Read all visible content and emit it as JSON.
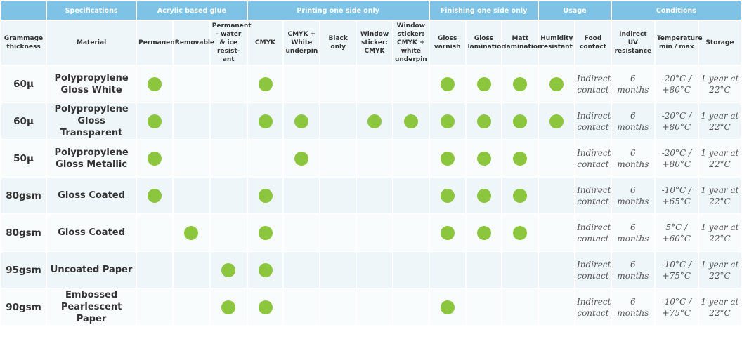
{
  "colors": {
    "header": "#7ec3e6",
    "dot": "#8cc63f",
    "subheader_bg": "#eef6fa"
  },
  "groups": [
    {
      "label": "",
      "span": 1
    },
    {
      "label": "Specifications",
      "span": 1
    },
    {
      "label": "Acrylic based glue",
      "span": 3
    },
    {
      "label": "Printing one side only",
      "span": 5
    },
    {
      "label": "Finishing one side only",
      "span": 3
    },
    {
      "label": "Usage",
      "span": 2
    },
    {
      "label": "Conditions",
      "span": 3
    }
  ],
  "columns": [
    "Grammage thickness",
    "Material",
    "Permanent",
    "Removable",
    "Permanent - water & ice resist-ant",
    "CMYK",
    "CMYK + White underpin",
    "Black only",
    "Window sticker: CMYK",
    "Window sticker: CMYK + white underpin",
    "Gloss varnish",
    "Gloss lamination",
    "Matt lamination",
    "Humidity resistant",
    "Food contact",
    "Indirect UV resistance",
    "Temperature min / max",
    "Storage"
  ],
  "dot_icon": "filled-circle-icon",
  "rows": [
    {
      "thickness": "60μ",
      "material": "Polypropylene Gloss White",
      "dots": [
        true,
        false,
        false,
        true,
        false,
        false,
        false,
        false,
        true,
        true,
        true,
        true
      ],
      "food": "Indirect contact",
      "uv": "6 months",
      "temp": "-20°C / +80°C",
      "storage": "1 year at 22°C"
    },
    {
      "thickness": "60μ",
      "material": "Polypropylene Gloss Transparent",
      "dots": [
        true,
        false,
        false,
        true,
        true,
        false,
        true,
        true,
        true,
        true,
        true,
        true
      ],
      "food": "Indirect contact",
      "uv": "6 months",
      "temp": "-20°C / +80°C",
      "storage": "1 year at 22°C"
    },
    {
      "thickness": "50μ",
      "material": "Polypropylene Gloss Metallic",
      "dots": [
        true,
        false,
        false,
        false,
        true,
        false,
        false,
        false,
        true,
        true,
        true,
        false
      ],
      "food": "Indirect contact",
      "uv": "6 months",
      "temp": "-20°C / +80°C",
      "storage": "1 year at 22°C"
    },
    {
      "thickness": "80gsm",
      "material": "Gloss Coated",
      "dots": [
        true,
        false,
        false,
        true,
        false,
        false,
        false,
        false,
        true,
        true,
        true,
        false
      ],
      "food": "Indirect contact",
      "uv": "6 months",
      "temp": "-10°C / +65°C",
      "storage": "1 year at 22°C"
    },
    {
      "thickness": "80gsm",
      "material": "Gloss Coated",
      "dots": [
        false,
        true,
        false,
        true,
        false,
        false,
        false,
        false,
        true,
        true,
        true,
        false
      ],
      "food": "Indirect contact",
      "uv": "6 months",
      "temp": "5°C / +60°C",
      "storage": "1 year at 22°C"
    },
    {
      "thickness": "95gsm",
      "material": "Uncoated Paper",
      "dots": [
        false,
        false,
        true,
        true,
        false,
        false,
        false,
        false,
        false,
        false,
        false,
        false
      ],
      "food": "Indirect contact",
      "uv": "6 months",
      "temp": "-10°C / +75°C",
      "storage": "1 year at 22°C"
    },
    {
      "thickness": "90gsm",
      "material": "Embossed Pearlescent Paper",
      "dots": [
        false,
        false,
        true,
        true,
        false,
        false,
        false,
        false,
        true,
        false,
        false,
        false
      ],
      "food": "Indirect contact",
      "uv": "6 months",
      "temp": "-10°C / +75°C",
      "storage": "1 year at 22°C"
    }
  ]
}
